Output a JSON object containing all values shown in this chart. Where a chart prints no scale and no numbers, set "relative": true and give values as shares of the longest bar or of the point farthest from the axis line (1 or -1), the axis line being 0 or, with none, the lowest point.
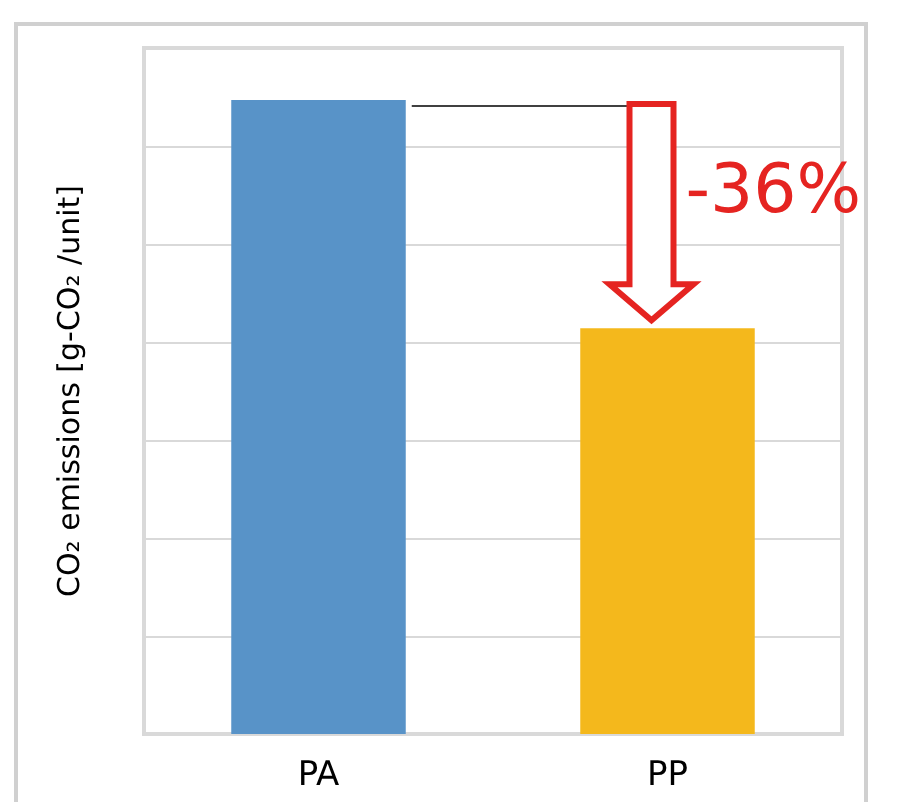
{
  "chart_data": {
    "type": "bar",
    "ylabel": "CO₂ emissions [g-CO₂ /unit]",
    "categories": [
      "PA",
      "PP"
    ],
    "values": [
      1,
      0.64
    ],
    "colors": [
      "#5893c8",
      "#f4b81c"
    ],
    "relative": true,
    "grid": "y",
    "annotations": [
      "-36%"
    ]
  }
}
